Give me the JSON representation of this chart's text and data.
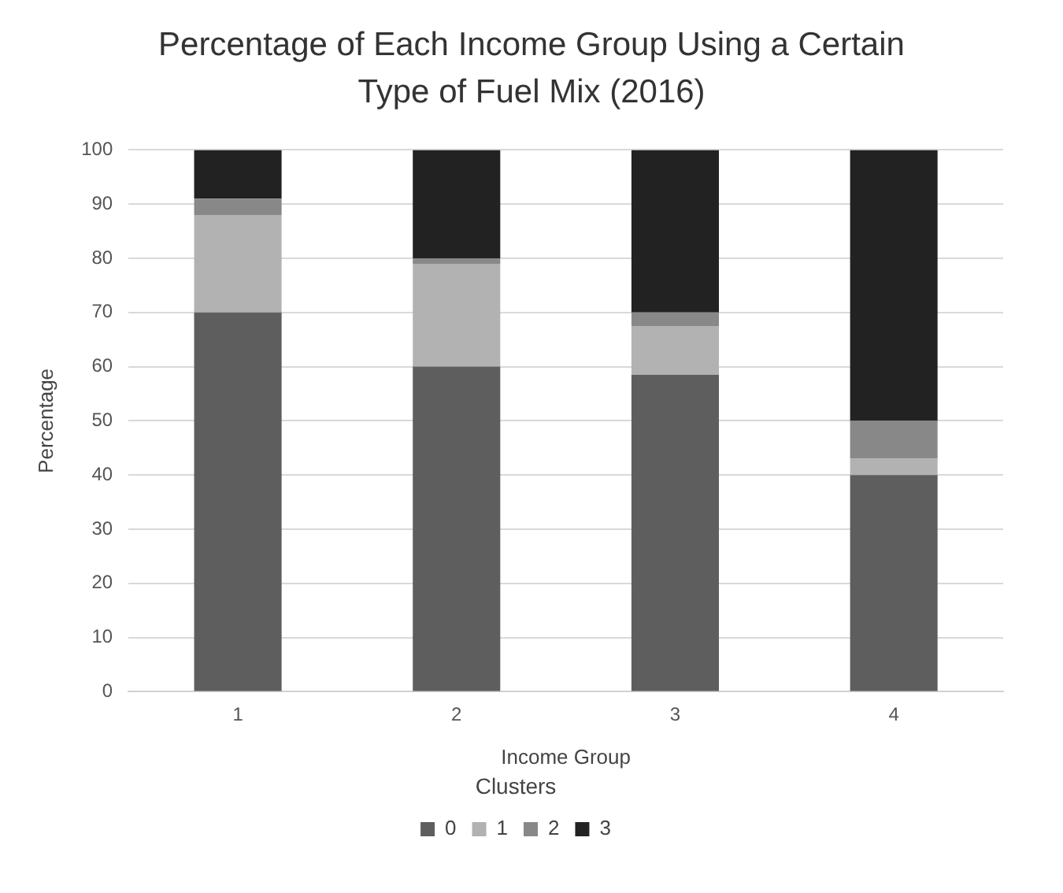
{
  "chart_data": {
    "type": "bar",
    "stacked": true,
    "title": "Percentage of Each Income Group Using a Certain Type of Fuel Mix (2016)",
    "xlabel": "Income Group",
    "ylabel": "Percentage",
    "legend_title": "Clusters",
    "legend": "bottom",
    "grid": "y",
    "categories": [
      "1",
      "2",
      "3",
      "4"
    ],
    "ylim": [
      0,
      100
    ],
    "yticks": [
      0,
      10,
      20,
      30,
      40,
      50,
      60,
      70,
      80,
      90,
      100
    ],
    "series": [
      {
        "name": "0",
        "color": "#5e5e5e",
        "values": [
          70,
          60,
          58.5,
          40
        ]
      },
      {
        "name": "1",
        "color": "#b2b2b2",
        "values": [
          18,
          19,
          9,
          3
        ]
      },
      {
        "name": "2",
        "color": "#888888",
        "values": [
          3,
          1,
          2.5,
          7
        ]
      },
      {
        "name": "3",
        "color": "#222222",
        "values": [
          9,
          20,
          30,
          50
        ]
      }
    ]
  }
}
